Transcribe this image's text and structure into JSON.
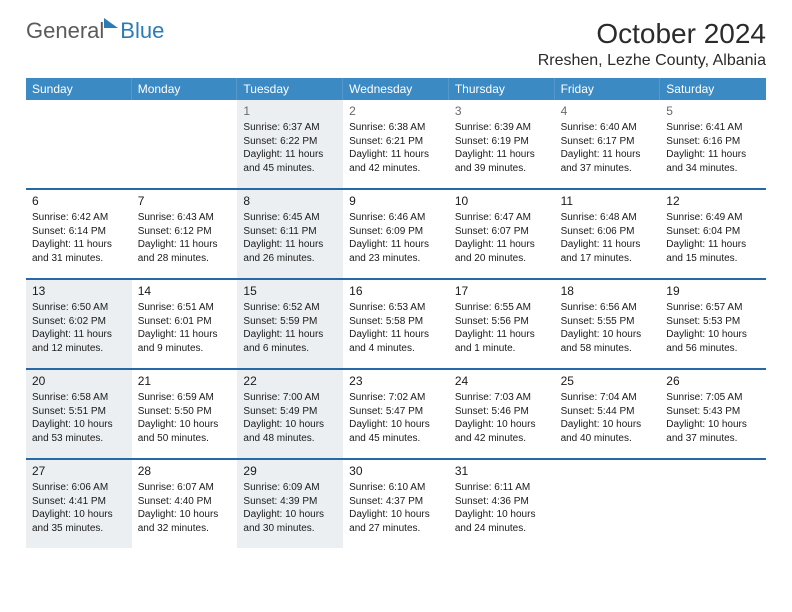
{
  "logo_part1": "General",
  "logo_part2": "Blue",
  "month_title": "October 2024",
  "location": "Rreshen, Lezhe County, Albania",
  "header_bg": "#3b8ac4",
  "shade_bg": "#eceff1",
  "row_border": "#2768a6",
  "day_names": [
    "Sunday",
    "Monday",
    "Tuesday",
    "Wednesday",
    "Thursday",
    "Friday",
    "Saturday"
  ],
  "weeks": [
    [
      {
        "num": "",
        "shade": false,
        "lines": [
          "",
          "",
          "",
          ""
        ]
      },
      {
        "num": "",
        "shade": false,
        "lines": [
          "",
          "",
          "",
          ""
        ]
      },
      {
        "num": "1",
        "shade": true,
        "gray": true,
        "lines": [
          "Sunrise: 6:37 AM",
          "Sunset: 6:22 PM",
          "Daylight: 11 hours",
          "and 45 minutes."
        ]
      },
      {
        "num": "2",
        "shade": false,
        "gray": true,
        "lines": [
          "Sunrise: 6:38 AM",
          "Sunset: 6:21 PM",
          "Daylight: 11 hours",
          "and 42 minutes."
        ]
      },
      {
        "num": "3",
        "shade": false,
        "gray": true,
        "lines": [
          "Sunrise: 6:39 AM",
          "Sunset: 6:19 PM",
          "Daylight: 11 hours",
          "and 39 minutes."
        ]
      },
      {
        "num": "4",
        "shade": false,
        "gray": true,
        "lines": [
          "Sunrise: 6:40 AM",
          "Sunset: 6:17 PM",
          "Daylight: 11 hours",
          "and 37 minutes."
        ]
      },
      {
        "num": "5",
        "shade": false,
        "gray": true,
        "lines": [
          "Sunrise: 6:41 AM",
          "Sunset: 6:16 PM",
          "Daylight: 11 hours",
          "and 34 minutes."
        ]
      }
    ],
    [
      {
        "num": "6",
        "shade": false,
        "lines": [
          "Sunrise: 6:42 AM",
          "Sunset: 6:14 PM",
          "Daylight: 11 hours",
          "and 31 minutes."
        ]
      },
      {
        "num": "7",
        "shade": false,
        "lines": [
          "Sunrise: 6:43 AM",
          "Sunset: 6:12 PM",
          "Daylight: 11 hours",
          "and 28 minutes."
        ]
      },
      {
        "num": "8",
        "shade": true,
        "lines": [
          "Sunrise: 6:45 AM",
          "Sunset: 6:11 PM",
          "Daylight: 11 hours",
          "and 26 minutes."
        ]
      },
      {
        "num": "9",
        "shade": false,
        "lines": [
          "Sunrise: 6:46 AM",
          "Sunset: 6:09 PM",
          "Daylight: 11 hours",
          "and 23 minutes."
        ]
      },
      {
        "num": "10",
        "shade": false,
        "lines": [
          "Sunrise: 6:47 AM",
          "Sunset: 6:07 PM",
          "Daylight: 11 hours",
          "and 20 minutes."
        ]
      },
      {
        "num": "11",
        "shade": false,
        "lines": [
          "Sunrise: 6:48 AM",
          "Sunset: 6:06 PM",
          "Daylight: 11 hours",
          "and 17 minutes."
        ]
      },
      {
        "num": "12",
        "shade": false,
        "lines": [
          "Sunrise: 6:49 AM",
          "Sunset: 6:04 PM",
          "Daylight: 11 hours",
          "and 15 minutes."
        ]
      }
    ],
    [
      {
        "num": "13",
        "shade": true,
        "lines": [
          "Sunrise: 6:50 AM",
          "Sunset: 6:02 PM",
          "Daylight: 11 hours",
          "and 12 minutes."
        ]
      },
      {
        "num": "14",
        "shade": false,
        "lines": [
          "Sunrise: 6:51 AM",
          "Sunset: 6:01 PM",
          "Daylight: 11 hours",
          "and 9 minutes."
        ]
      },
      {
        "num": "15",
        "shade": true,
        "lines": [
          "Sunrise: 6:52 AM",
          "Sunset: 5:59 PM",
          "Daylight: 11 hours",
          "and 6 minutes."
        ]
      },
      {
        "num": "16",
        "shade": false,
        "lines": [
          "Sunrise: 6:53 AM",
          "Sunset: 5:58 PM",
          "Daylight: 11 hours",
          "and 4 minutes."
        ]
      },
      {
        "num": "17",
        "shade": false,
        "lines": [
          "Sunrise: 6:55 AM",
          "Sunset: 5:56 PM",
          "Daylight: 11 hours",
          "and 1 minute."
        ]
      },
      {
        "num": "18",
        "shade": false,
        "lines": [
          "Sunrise: 6:56 AM",
          "Sunset: 5:55 PM",
          "Daylight: 10 hours",
          "and 58 minutes."
        ]
      },
      {
        "num": "19",
        "shade": false,
        "lines": [
          "Sunrise: 6:57 AM",
          "Sunset: 5:53 PM",
          "Daylight: 10 hours",
          "and 56 minutes."
        ]
      }
    ],
    [
      {
        "num": "20",
        "shade": true,
        "lines": [
          "Sunrise: 6:58 AM",
          "Sunset: 5:51 PM",
          "Daylight: 10 hours",
          "and 53 minutes."
        ]
      },
      {
        "num": "21",
        "shade": false,
        "lines": [
          "Sunrise: 6:59 AM",
          "Sunset: 5:50 PM",
          "Daylight: 10 hours",
          "and 50 minutes."
        ]
      },
      {
        "num": "22",
        "shade": true,
        "lines": [
          "Sunrise: 7:00 AM",
          "Sunset: 5:49 PM",
          "Daylight: 10 hours",
          "and 48 minutes."
        ]
      },
      {
        "num": "23",
        "shade": false,
        "lines": [
          "Sunrise: 7:02 AM",
          "Sunset: 5:47 PM",
          "Daylight: 10 hours",
          "and 45 minutes."
        ]
      },
      {
        "num": "24",
        "shade": false,
        "lines": [
          "Sunrise: 7:03 AM",
          "Sunset: 5:46 PM",
          "Daylight: 10 hours",
          "and 42 minutes."
        ]
      },
      {
        "num": "25",
        "shade": false,
        "lines": [
          "Sunrise: 7:04 AM",
          "Sunset: 5:44 PM",
          "Daylight: 10 hours",
          "and 40 minutes."
        ]
      },
      {
        "num": "26",
        "shade": false,
        "lines": [
          "Sunrise: 7:05 AM",
          "Sunset: 5:43 PM",
          "Daylight: 10 hours",
          "and 37 minutes."
        ]
      }
    ],
    [
      {
        "num": "27",
        "shade": true,
        "lines": [
          "Sunrise: 6:06 AM",
          "Sunset: 4:41 PM",
          "Daylight: 10 hours",
          "and 35 minutes."
        ]
      },
      {
        "num": "28",
        "shade": false,
        "lines": [
          "Sunrise: 6:07 AM",
          "Sunset: 4:40 PM",
          "Daylight: 10 hours",
          "and 32 minutes."
        ]
      },
      {
        "num": "29",
        "shade": true,
        "lines": [
          "Sunrise: 6:09 AM",
          "Sunset: 4:39 PM",
          "Daylight: 10 hours",
          "and 30 minutes."
        ]
      },
      {
        "num": "30",
        "shade": false,
        "lines": [
          "Sunrise: 6:10 AM",
          "Sunset: 4:37 PM",
          "Daylight: 10 hours",
          "and 27 minutes."
        ]
      },
      {
        "num": "31",
        "shade": false,
        "lines": [
          "Sunrise: 6:11 AM",
          "Sunset: 4:36 PM",
          "Daylight: 10 hours",
          "and 24 minutes."
        ]
      },
      {
        "num": "",
        "shade": false,
        "lines": [
          "",
          "",
          "",
          ""
        ]
      },
      {
        "num": "",
        "shade": false,
        "lines": [
          "",
          "",
          "",
          ""
        ]
      }
    ]
  ]
}
